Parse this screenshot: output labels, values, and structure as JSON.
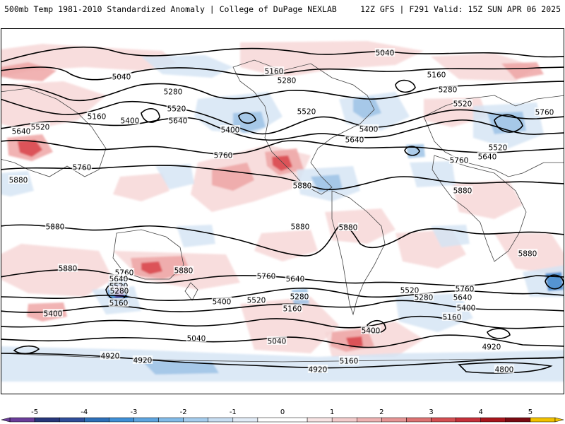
{
  "header": {
    "left_title": "500mb Temp 1981-2010 Standardized Anomaly | College of DuPage NEXLAB",
    "right_title": "12Z GFS | F291 Valid: 15Z SUN APR 06 2025"
  },
  "colors": {
    "contour": "#000000",
    "border": "#444444",
    "warm_1": "#f7d7d7",
    "warm_2": "#eea6a6",
    "warm_3": "#d9444a",
    "warm_4": "#a8151c",
    "cold_1": "#d6e5f4",
    "cold_2": "#9dc3e6",
    "cold_3": "#3f86cc",
    "cold_4": "#5a2c8f"
  },
  "contour_labels": [
    {
      "text": "5040",
      "key": "nh_5040_a"
    },
    {
      "text": "5040",
      "key": "nh_5040_b"
    },
    {
      "text": "5160",
      "key": "nh_5160_a"
    },
    {
      "text": "5160",
      "key": "nh_5160_b"
    },
    {
      "text": "5160",
      "key": "nh_5160_c"
    },
    {
      "text": "5280",
      "key": "nh_5280_a"
    },
    {
      "text": "5280",
      "key": "nh_5280_b"
    },
    {
      "text": "5280",
      "key": "nh_5280_c"
    },
    {
      "text": "5520",
      "key": "nh_5520_a"
    },
    {
      "text": "5520",
      "key": "nh_5520_b"
    },
    {
      "text": "5520",
      "key": "nh_5520_c"
    },
    {
      "text": "5520",
      "key": "nh_5520_d"
    },
    {
      "text": "5520",
      "key": "nh_5520_e"
    },
    {
      "text": "5400",
      "key": "nh_5400_a"
    },
    {
      "text": "5400",
      "key": "nh_5400_b"
    },
    {
      "text": "5400",
      "key": "nh_5400_c"
    },
    {
      "text": "5640",
      "key": "nh_5640_a"
    },
    {
      "text": "5640",
      "key": "nh_5640_b"
    },
    {
      "text": "5640",
      "key": "nh_5640_c"
    },
    {
      "text": "5640",
      "key": "nh_5640_d"
    },
    {
      "text": "5760",
      "key": "nh_5760_a"
    },
    {
      "text": "5760",
      "key": "nh_5760_b"
    },
    {
      "text": "5760",
      "key": "nh_5760_c"
    },
    {
      "text": "5760",
      "key": "nh_5760_d"
    },
    {
      "text": "5880",
      "key": "tr_5880_a"
    },
    {
      "text": "5880",
      "key": "tr_5880_b"
    },
    {
      "text": "5880",
      "key": "tr_5880_c"
    },
    {
      "text": "5880",
      "key": "tr_5880_d"
    },
    {
      "text": "5880",
      "key": "tr_5880_e"
    },
    {
      "text": "5880",
      "key": "tr_5880_f"
    },
    {
      "text": "5880",
      "key": "tr_5880_g"
    },
    {
      "text": "5880",
      "key": "tr_5880_h"
    },
    {
      "text": "5880",
      "key": "tr_5880_i"
    },
    {
      "text": "5760",
      "key": "sh_5760_a"
    },
    {
      "text": "5760",
      "key": "sh_5760_b"
    },
    {
      "text": "5760",
      "key": "sh_5760_c"
    },
    {
      "text": "5640",
      "key": "sh_5640_a"
    },
    {
      "text": "5640",
      "key": "sh_5640_b"
    },
    {
      "text": "5640",
      "key": "sh_5640_c"
    },
    {
      "text": "5520",
      "key": "sh_5520_a"
    },
    {
      "text": "5520",
      "key": "sh_5520_b"
    },
    {
      "text": "5520",
      "key": "sh_5520_c"
    },
    {
      "text": "5280",
      "key": "sh_5280_a"
    },
    {
      "text": "5280",
      "key": "sh_5280_b"
    },
    {
      "text": "5280",
      "key": "sh_5280_c"
    },
    {
      "text": "5400",
      "key": "sh_5400_a"
    },
    {
      "text": "5400",
      "key": "sh_5400_b"
    },
    {
      "text": "5400",
      "key": "sh_5400_c"
    },
    {
      "text": "5400",
      "key": "sh_5400_d"
    },
    {
      "text": "5160",
      "key": "sh_5160_a"
    },
    {
      "text": "5160",
      "key": "sh_5160_b"
    },
    {
      "text": "5160",
      "key": "sh_5160_c"
    },
    {
      "text": "5160",
      "key": "sh_5160_d"
    },
    {
      "text": "5040",
      "key": "sh_5040_a"
    },
    {
      "text": "5040",
      "key": "sh_5040_b"
    },
    {
      "text": "4920",
      "key": "sh_4920_a"
    },
    {
      "text": "4920",
      "key": "sh_4920_b"
    },
    {
      "text": "4920",
      "key": "sh_4920_c"
    },
    {
      "text": "4920",
      "key": "sh_4920_d"
    },
    {
      "text": "4800",
      "key": "sh_4800_a"
    }
  ],
  "colorbar": {
    "ticks": [
      "-5",
      "-4",
      "-3",
      "-2",
      "-1",
      "0",
      "1",
      "2",
      "3",
      "4",
      "5"
    ],
    "min": -5.5,
    "max": 5.5,
    "bins": [
      {
        "from": -5.5,
        "to": -5,
        "color": "#6a3d9a"
      },
      {
        "from": -5,
        "to": -4.5,
        "color": "#27367a"
      },
      {
        "from": -4.5,
        "to": -4,
        "color": "#2f4e9a"
      },
      {
        "from": -4,
        "to": -3.5,
        "color": "#2d6fb8"
      },
      {
        "from": -3.5,
        "to": -3,
        "color": "#3f8fd6"
      },
      {
        "from": -3,
        "to": -2.5,
        "color": "#5ea5e0"
      },
      {
        "from": -2.5,
        "to": -2,
        "color": "#82bbe8"
      },
      {
        "from": -2,
        "to": -1.5,
        "color": "#a6cdee"
      },
      {
        "from": -1.5,
        "to": -1,
        "color": "#c8def2"
      },
      {
        "from": -1,
        "to": -0.5,
        "color": "#e2ecf7"
      },
      {
        "from": -0.5,
        "to": 0.5,
        "color": "#ffffff"
      },
      {
        "from": 0.5,
        "to": 1,
        "color": "#f8e4e4"
      },
      {
        "from": 1,
        "to": 1.5,
        "color": "#f3cccc"
      },
      {
        "from": 1.5,
        "to": 2,
        "color": "#eeb2b2"
      },
      {
        "from": 2,
        "to": 2.5,
        "color": "#e69595"
      },
      {
        "from": 2.5,
        "to": 3,
        "color": "#dd7373"
      },
      {
        "from": 3,
        "to": 3.5,
        "color": "#d44f52"
      },
      {
        "from": 3.5,
        "to": 4,
        "color": "#c5303a"
      },
      {
        "from": 4,
        "to": 4.5,
        "color": "#a8151c"
      },
      {
        "from": 4.5,
        "to": 5,
        "color": "#7a0a12"
      },
      {
        "from": 5,
        "to": 5.5,
        "color": "#f2c200"
      }
    ]
  }
}
